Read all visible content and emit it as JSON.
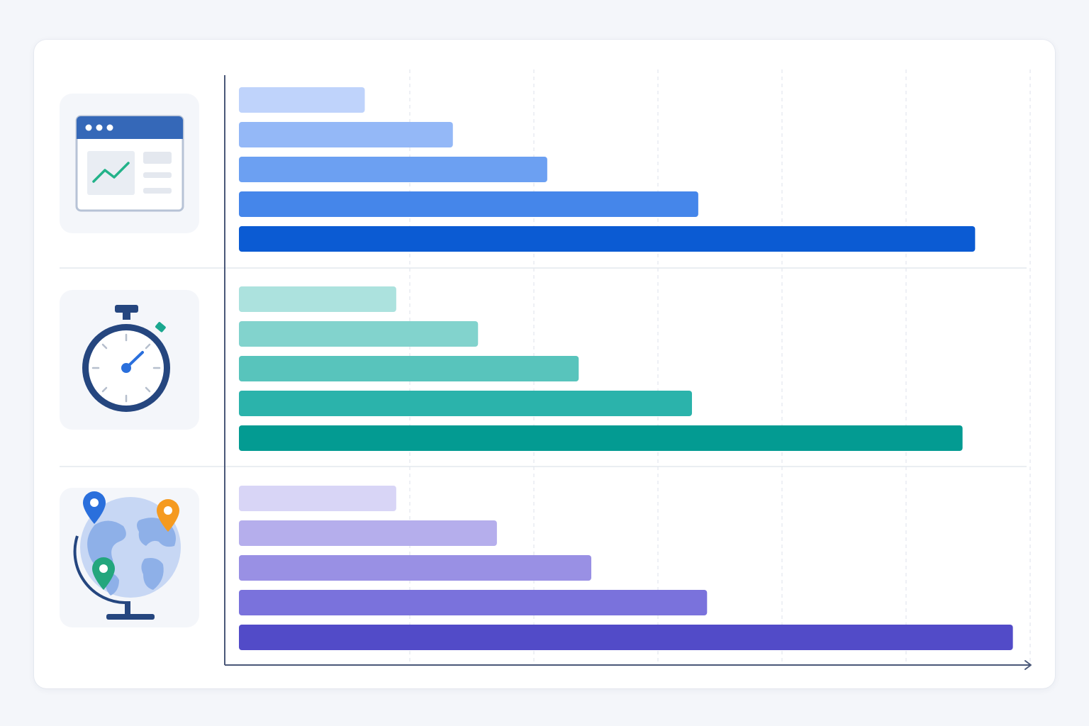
{
  "chart_data": {
    "type": "bar",
    "orientation": "horizontal",
    "title": "",
    "xlabel": "",
    "ylabel": "",
    "xlim": [
      0,
      6.5
    ],
    "grid": true,
    "legend": "none",
    "groups": [
      {
        "icon": "dashboard-window-icon",
        "values": [
          1.0,
          1.7,
          2.45,
          3.65,
          5.85
        ],
        "colors": [
          "#bfd3fb",
          "#94b8f7",
          "#6ca0f2",
          "#4586ea",
          "#0b5bd3"
        ]
      },
      {
        "icon": "stopwatch-icon",
        "values": [
          1.25,
          1.9,
          2.7,
          3.6,
          5.75
        ],
        "colors": [
          "#ace2de",
          "#82d3cd",
          "#58c4bc",
          "#2bb3ab",
          "#039b92"
        ]
      },
      {
        "icon": "globe-location-icon",
        "values": [
          1.25,
          2.05,
          2.8,
          3.72,
          6.15
        ],
        "colors": [
          "#d8d5f6",
          "#b5aeec",
          "#9990e4",
          "#7a72dc",
          "#524bc8"
        ]
      }
    ]
  }
}
